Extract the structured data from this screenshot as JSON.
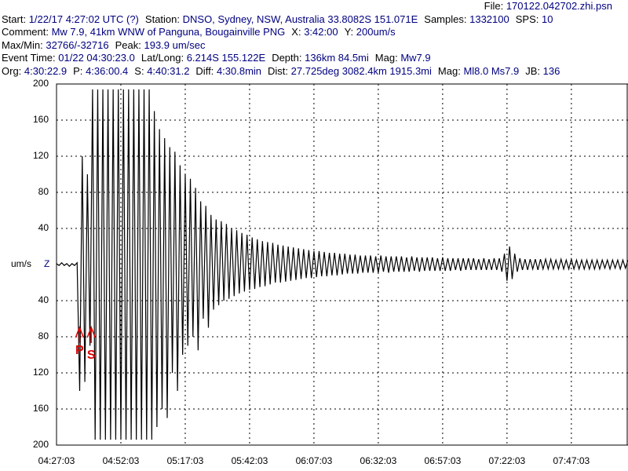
{
  "header": {
    "file": {
      "label": "File:",
      "value": "170122.042702.zhi.psn"
    },
    "lines": [
      [
        {
          "label": "Start:",
          "value": "1/22/17  4:27:02 UTC (?)"
        },
        {
          "label": "Station:",
          "value": "DNSO, Sydney, NSW, Australia 33.8082S 151.071E"
        },
        {
          "label": "Samples:",
          "value": "1332100"
        },
        {
          "label": "SPS:",
          "value": "10"
        }
      ],
      [
        {
          "label": "Comment:",
          "value": "Mw 7.9, 41km WNW of Panguna, Bougainville PNG"
        },
        {
          "label": "X:",
          "value": "3:42:00"
        },
        {
          "label": "Y:",
          "value": "200um/s"
        }
      ],
      [
        {
          "label": "Max/Min:",
          "value": "32766/-32716"
        },
        {
          "label": "Peak:",
          "value": "193.9 um/sec"
        }
      ],
      [
        {
          "label": "Event Time:",
          "value": "01/22 04:30:23.0"
        },
        {
          "label": "Lat/Long:",
          "value": "6.214S 155.122E"
        },
        {
          "label": "Depth:",
          "value": "136km 84.5mi"
        },
        {
          "label": "Mag:",
          "value": "Mw7.9"
        }
      ],
      [
        {
          "label": "Org:",
          "value": "4:30:22.9"
        },
        {
          "label": "P:",
          "value": "4:36:00.4"
        },
        {
          "label": "S:",
          "value": "4:40:31.2"
        },
        {
          "label": "Diff:",
          "value": "4:30.8min"
        },
        {
          "label": "Dist:",
          "value": "27.725deg 3082.4km 1915.3mi"
        },
        {
          "label": "Mag:",
          "value": "Ml8.0 Ms7.9"
        },
        {
          "label": "JB:",
          "value": "136"
        }
      ]
    ]
  },
  "chart_data": {
    "type": "line",
    "ylabel": "um/s",
    "channel": "Z",
    "color": "#000000",
    "grid": true,
    "xlim": [
      0,
      222
    ],
    "ylim": [
      -200,
      200
    ],
    "xticks": [
      {
        "value": 0,
        "label": "04:27:03"
      },
      {
        "value": 25,
        "label": "04:52:03"
      },
      {
        "value": 50,
        "label": "05:17:03"
      },
      {
        "value": 75,
        "label": "05:42:03"
      },
      {
        "value": 100,
        "label": "06:07:03"
      },
      {
        "value": 125,
        "label": "06:32:03"
      },
      {
        "value": 150,
        "label": "06:57:03"
      },
      {
        "value": 175,
        "label": "07:22:03"
      },
      {
        "value": 200,
        "label": "07:47:03"
      }
    ],
    "yticks": [
      200,
      160,
      120,
      80,
      40,
      {
        "value": -40,
        "label": "40"
      },
      {
        "value": -80,
        "label": "80"
      },
      {
        "value": -120,
        "label": "120"
      },
      {
        "value": -160,
        "label": "160"
      },
      {
        "value": -200,
        "label": "200"
      }
    ],
    "annotations": [
      {
        "label": "P",
        "x": 8.95,
        "color": "#dd0000"
      },
      {
        "label": "S",
        "x": 13.47,
        "color": "#dd0000"
      }
    ],
    "x": [
      0,
      1,
      2,
      3,
      4,
      5,
      6,
      7,
      8,
      9,
      10,
      11,
      12,
      13,
      14,
      15,
      16,
      17,
      18,
      19,
      20,
      21,
      22,
      23,
      24,
      25,
      26,
      27,
      28,
      29,
      30,
      31,
      32,
      33,
      34,
      35,
      36,
      37,
      38,
      39,
      40,
      41,
      42,
      43,
      44,
      45,
      46,
      47,
      48,
      49,
      50,
      51,
      52,
      53,
      54,
      55,
      56,
      57,
      58,
      59,
      60,
      61,
      62,
      63,
      64,
      65,
      66,
      67,
      68,
      69,
      70,
      71,
      72,
      73,
      74,
      75,
      76,
      77,
      78,
      79,
      80,
      81,
      82,
      83,
      84,
      85,
      86,
      87,
      88,
      89,
      90,
      91,
      92,
      93,
      94,
      95,
      96,
      97,
      98,
      99,
      100,
      101,
      102,
      103,
      104,
      105,
      106,
      107,
      108,
      109,
      110,
      111,
      112,
      113,
      114,
      115,
      116,
      117,
      118,
      119,
      120,
      121,
      122,
      123,
      124,
      125,
      126,
      127,
      128,
      129,
      130,
      131,
      132,
      133,
      134,
      135,
      136,
      137,
      138,
      139,
      140,
      141,
      142,
      143,
      144,
      145,
      146,
      147,
      148,
      149,
      150,
      151,
      152,
      153,
      154,
      155,
      156,
      157,
      158,
      159,
      160,
      161,
      162,
      163,
      164,
      165,
      166,
      167,
      168,
      169,
      170,
      171,
      172,
      173,
      174,
      175,
      176,
      177,
      178,
      179,
      180,
      181,
      182,
      183,
      184,
      185,
      186,
      187,
      188,
      189,
      190,
      191,
      192,
      193,
      194,
      195,
      196,
      197,
      198,
      199,
      200,
      201,
      202,
      203,
      204,
      205,
      206,
      207,
      208,
      209,
      210,
      211,
      212,
      213,
      214,
      215,
      216,
      217,
      218,
      219,
      220,
      221,
      222
    ],
    "values": [
      1,
      -1,
      2,
      -1,
      1,
      -2,
      1,
      -1,
      2,
      -140,
      120,
      -130,
      100,
      -90,
      194,
      -194,
      194,
      -194,
      194,
      -194,
      194,
      -194,
      194,
      -194,
      194,
      -194,
      194,
      -194,
      194,
      -194,
      194,
      -194,
      194,
      -194,
      194,
      -194,
      194,
      -194,
      170,
      -180,
      150,
      -160,
      140,
      -170,
      130,
      -120,
      125,
      -140,
      110,
      -100,
      100,
      -90,
      95,
      -80,
      85,
      -95,
      70,
      -60,
      65,
      -70,
      55,
      -50,
      50,
      -45,
      48,
      -40,
      45,
      -38,
      40,
      -35,
      38,
      -32,
      35,
      -30,
      33,
      -28,
      30,
      -27,
      28,
      -25,
      26,
      -24,
      25,
      -22,
      24,
      -20,
      22,
      -20,
      21,
      -19,
      20,
      -18,
      19,
      -17,
      18,
      -16,
      17,
      -15,
      16,
      -15,
      15,
      -14,
      15,
      -13,
      14,
      -13,
      13,
      -12,
      13,
      -12,
      12,
      -11,
      12,
      -10,
      11,
      -10,
      11,
      -10,
      10,
      -9,
      10,
      -9,
      10,
      -9,
      9,
      -9,
      10,
      -8,
      9,
      -9,
      9,
      -8,
      9,
      -8,
      9,
      -8,
      8,
      -8,
      9,
      -7,
      8,
      -8,
      8,
      -7,
      8,
      -7,
      8,
      -7,
      7,
      -7,
      8,
      -7,
      7,
      -7,
      7,
      -6,
      7,
      -7,
      7,
      -6,
      7,
      -6,
      7,
      -6,
      6,
      -6,
      7,
      -6,
      6,
      -6,
      7,
      -6,
      7,
      -8,
      12,
      -18,
      20,
      -16,
      12,
      -8,
      7,
      -6,
      6,
      -6,
      6,
      -5,
      6,
      -6,
      6,
      -5,
      6,
      -5,
      6,
      -5,
      5,
      -5,
      6,
      -5,
      5,
      -5,
      6,
      -5,
      5,
      -5,
      5,
      -5,
      5,
      -5,
      5,
      -5,
      5,
      -5,
      5,
      -4,
      5,
      -5,
      5,
      -4,
      5,
      -5,
      5,
      -4,
      5
    ]
  }
}
